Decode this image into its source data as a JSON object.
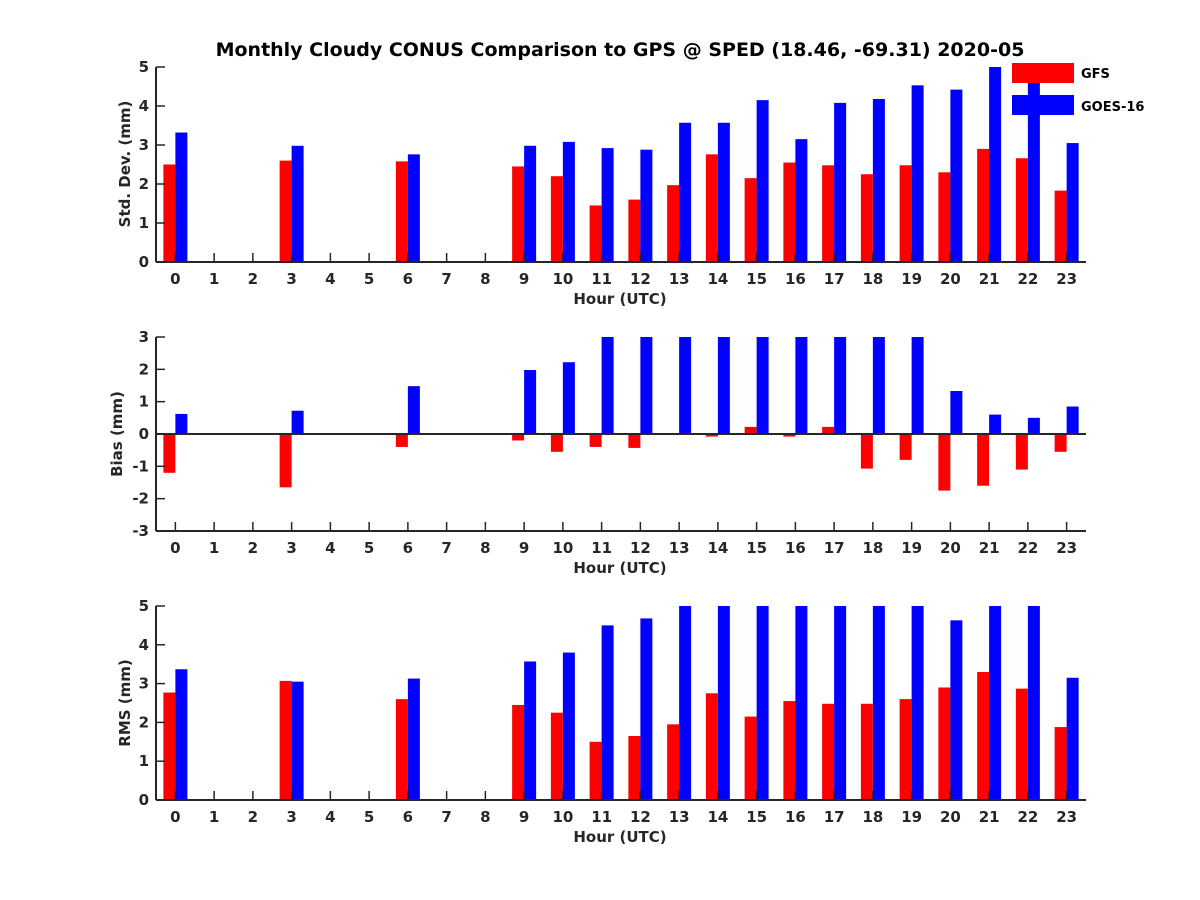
{
  "title": "Monthly Cloudy CONUS Comparison to GPS @ SPED (18.46, -69.31) 2020-05",
  "chart_data": [
    {
      "type": "bar",
      "id": "stddev",
      "categories": [
        0,
        1,
        2,
        3,
        4,
        5,
        6,
        7,
        8,
        9,
        10,
        11,
        12,
        13,
        14,
        15,
        16,
        17,
        18,
        19,
        20,
        21,
        22,
        23
      ],
      "series": [
        {
          "name": "GFS",
          "color": "#ff0000",
          "values": [
            2.5,
            null,
            null,
            2.6,
            null,
            null,
            2.58,
            null,
            null,
            2.45,
            2.2,
            1.45,
            1.6,
            1.97,
            2.76,
            2.15,
            2.55,
            2.48,
            2.25,
            2.48,
            2.3,
            2.9,
            2.66,
            1.83
          ]
        },
        {
          "name": "GOES-16",
          "color": "#0000ff",
          "values": [
            3.32,
            null,
            null,
            2.98,
            null,
            null,
            2.76,
            null,
            null,
            2.98,
            3.08,
            2.92,
            2.88,
            3.57,
            3.57,
            4.15,
            3.15,
            4.08,
            4.18,
            4.53,
            4.42,
            5.0,
            4.93,
            3.05
          ]
        }
      ],
      "xlabel": "Hour (UTC)",
      "ylabel": "Std. Dev. (mm)",
      "ylim": [
        0,
        5
      ],
      "yticks": [
        0,
        1,
        2,
        3,
        4,
        5
      ]
    },
    {
      "type": "bar",
      "id": "bias",
      "categories": [
        0,
        1,
        2,
        3,
        4,
        5,
        6,
        7,
        8,
        9,
        10,
        11,
        12,
        13,
        14,
        15,
        16,
        17,
        18,
        19,
        20,
        21,
        22,
        23
      ],
      "series": [
        {
          "name": "GFS",
          "color": "#ff0000",
          "values": [
            -1.2,
            null,
            null,
            -1.65,
            null,
            null,
            -0.4,
            null,
            null,
            -0.2,
            -0.55,
            -0.4,
            -0.43,
            0.0,
            -0.08,
            0.22,
            -0.08,
            0.22,
            -1.07,
            -0.8,
            -1.75,
            -1.6,
            -1.1,
            -0.55
          ]
        },
        {
          "name": "GOES-16",
          "color": "#0000ff",
          "values": [
            0.62,
            null,
            null,
            0.72,
            null,
            null,
            1.48,
            null,
            null,
            1.98,
            2.22,
            3.0,
            3.0,
            3.0,
            3.0,
            3.0,
            3.0,
            3.0,
            3.0,
            3.0,
            1.33,
            0.6,
            0.5,
            0.85
          ]
        }
      ],
      "xlabel": "Hour (UTC)",
      "ylabel": "Bias (mm)",
      "ylim": [
        -3,
        3
      ],
      "yticks": [
        -3,
        -2,
        -1,
        0,
        1,
        2,
        3
      ]
    },
    {
      "type": "bar",
      "id": "rms",
      "categories": [
        0,
        1,
        2,
        3,
        4,
        5,
        6,
        7,
        8,
        9,
        10,
        11,
        12,
        13,
        14,
        15,
        16,
        17,
        18,
        19,
        20,
        21,
        22,
        23
      ],
      "series": [
        {
          "name": "GFS",
          "color": "#ff0000",
          "values": [
            2.77,
            null,
            null,
            3.07,
            null,
            null,
            2.6,
            null,
            null,
            2.45,
            2.25,
            1.5,
            1.65,
            1.95,
            2.75,
            2.15,
            2.55,
            2.48,
            2.48,
            2.6,
            2.9,
            3.3,
            2.87,
            1.88
          ]
        },
        {
          "name": "GOES-16",
          "color": "#0000ff",
          "values": [
            3.37,
            null,
            null,
            3.05,
            null,
            null,
            3.13,
            null,
            null,
            3.57,
            3.8,
            4.5,
            4.68,
            5.0,
            5.0,
            5.0,
            5.0,
            5.0,
            5.0,
            5.0,
            4.63,
            5.0,
            5.0,
            3.15
          ]
        }
      ],
      "xlabel": "Hour (UTC)",
      "ylabel": "RMS (mm)",
      "ylim": [
        0,
        5
      ],
      "yticks": [
        0,
        1,
        2,
        3,
        4,
        5
      ]
    }
  ],
  "legend": {
    "placement": "top-right",
    "items": [
      {
        "label": "GFS",
        "color": "#ff0000"
      },
      {
        "label": "GOES-16",
        "color": "#0000ff"
      }
    ]
  }
}
